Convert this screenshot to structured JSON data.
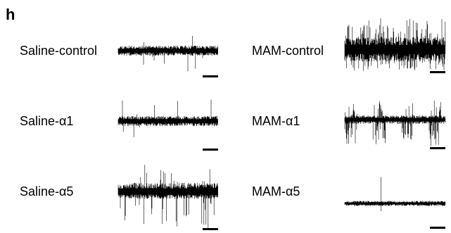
{
  "figure": {
    "panel_letter": "h",
    "traces": [
      {
        "label": "Saline-control",
        "style": "dense_spiky",
        "seed": 11
      },
      {
        "label": "MAM-control",
        "style": "very_dense",
        "seed": 23
      },
      {
        "label": "Saline-α1",
        "style": "dense_spiky",
        "seed": 37
      },
      {
        "label": "MAM-α1",
        "style": "bursty",
        "seed": 41
      },
      {
        "label": "Saline-α5",
        "style": "dense_long_down",
        "seed": 53
      },
      {
        "label": "MAM-α5",
        "style": "sparse_spikes",
        "seed": 67
      }
    ],
    "colors": {
      "trace": "#000000",
      "scale_bar": "#000000"
    }
  }
}
